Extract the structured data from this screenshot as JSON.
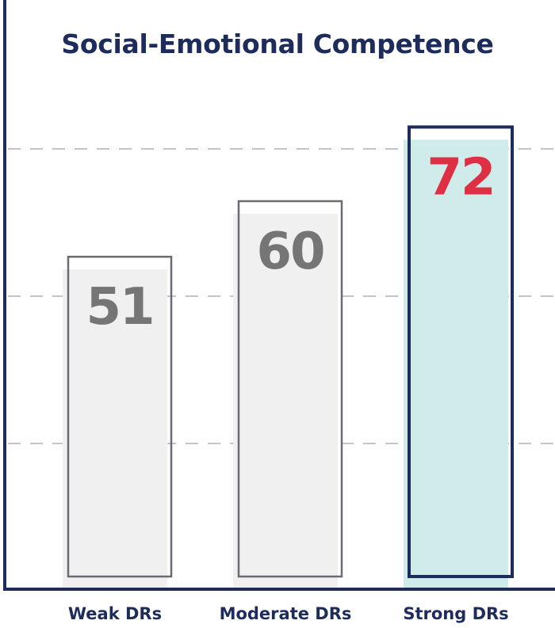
{
  "chart_data": {
    "type": "bar",
    "title": "Social-Emotional Competence",
    "categories": [
      "Weak DRs",
      "Moderate DRs",
      "Strong DRs"
    ],
    "values": [
      51,
      60,
      72
    ],
    "value_labels": [
      "51",
      "60",
      "72"
    ],
    "highlighted_category": "Strong DRs",
    "xlabel": "",
    "ylabel": "",
    "grid": true,
    "legend": "none"
  },
  "colors": {
    "title": "#1e2c5c",
    "axis": "#1e2c5c",
    "grid": "#c4c4c4",
    "bar_fill": "#f0f0f0",
    "bar_outline": "#6b6b72",
    "value_label": "#757575",
    "highlight_fill": "#cfeceb",
    "highlight_outline": "#1e2c5c",
    "highlight_label": "#de2f44",
    "category_label": "#1e2c5c"
  }
}
